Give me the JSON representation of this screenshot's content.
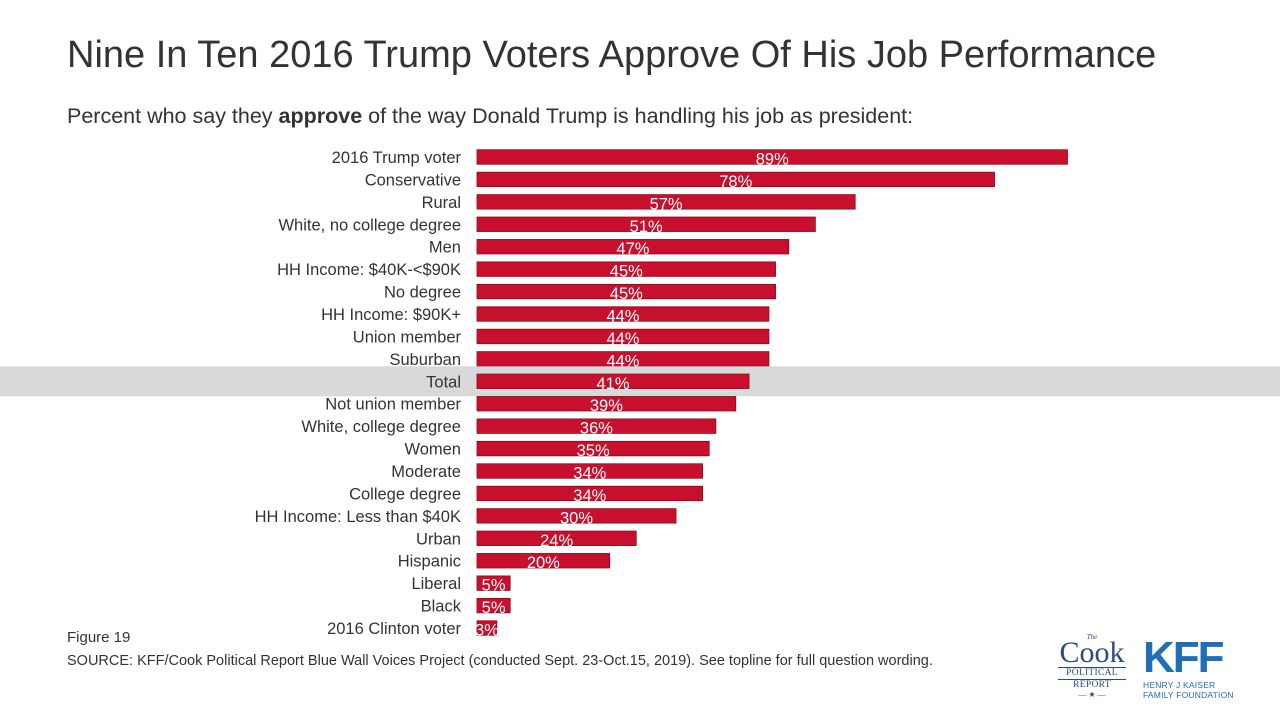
{
  "title": "Nine In Ten 2016 Trump Voters Approve Of His Job Performance",
  "subtitle": {
    "before": "Percent who say they ",
    "bold": "approve",
    "after": " of the way Donald Trump is handling his job as president:"
  },
  "figure_label": "Figure 19",
  "source": "SOURCE: KFF/Cook Political Report Blue Wall Voices Project (conducted Sept. 23-Oct.15, 2019). See topline for full question wording.",
  "logos": {
    "cook": {
      "the": "The",
      "cook": "Cook",
      "line1": "POLITICAL",
      "line2": "REPORT",
      "star": "— ★ —"
    },
    "kff": {
      "name": "KFF",
      "line1": "HENRY J KAISER",
      "line2": "FAMILY FOUNDATION"
    }
  },
  "colors": {
    "bar": "#c8102e",
    "bar_edge": "#8b0a1a",
    "highlight_band": "#d9d9d9",
    "text": "#333333",
    "bar_label": "#ffffff"
  },
  "chart_data": {
    "type": "bar",
    "orientation": "horizontal",
    "categories": [
      "2016 Trump voter",
      "Conservative",
      "Rural",
      "White, no college degree",
      "Men",
      "HH Income: $40K-<$90K",
      "No degree",
      "HH Income: $90K+",
      "Union member",
      "Suburban",
      "Total",
      "Not union member",
      "White, college degree",
      "Women",
      "Moderate",
      "College degree",
      "HH Income: Less than $40K",
      "Urban",
      "Hispanic",
      "Liberal",
      "Black",
      "2016 Clinton voter"
    ],
    "values": [
      89,
      78,
      57,
      51,
      47,
      45,
      45,
      44,
      44,
      44,
      41,
      39,
      36,
      35,
      34,
      34,
      30,
      24,
      20,
      5,
      5,
      3
    ],
    "labels": [
      "89%",
      "78%",
      "57%",
      "51%",
      "47%",
      "45%",
      "45%",
      "44%",
      "44%",
      "44%",
      "41%",
      "39%",
      "36%",
      "35%",
      "34%",
      "34%",
      "30%",
      "24%",
      "20%",
      "5%",
      "5%",
      "3%"
    ],
    "highlight": "Total",
    "xlim": [
      0,
      100
    ],
    "grid": false,
    "legend": "none"
  }
}
